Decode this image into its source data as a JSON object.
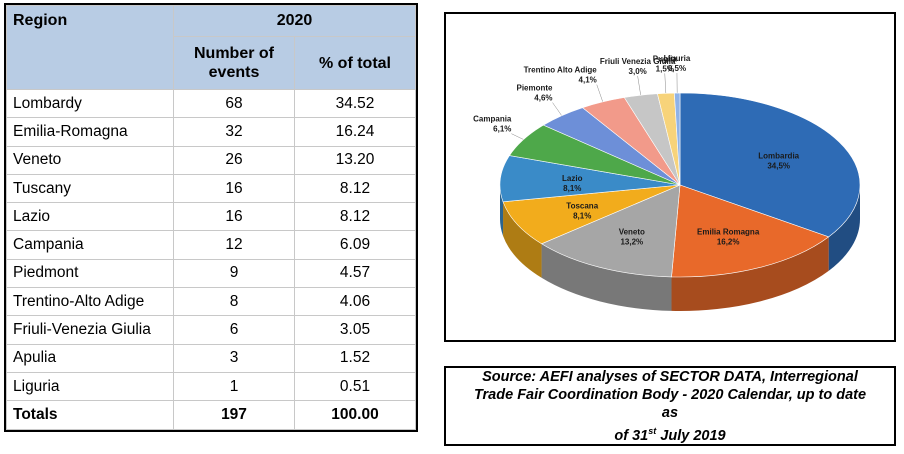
{
  "table": {
    "year": "2020",
    "region_header": "Region",
    "events_header_line1": "Number of",
    "events_header_line2": "events",
    "pct_header": "% of total",
    "rows": [
      {
        "region": "Lombardy",
        "events": "68",
        "pct": "34.52"
      },
      {
        "region": "Emilia-Romagna",
        "events": "32",
        "pct": "16.24"
      },
      {
        "region": "Veneto",
        "events": "26",
        "pct": "13.20"
      },
      {
        "region": "Tuscany",
        "events": "16",
        "pct": "8.12"
      },
      {
        "region": "Lazio",
        "events": "16",
        "pct": "8.12"
      },
      {
        "region": "Campania",
        "events": "12",
        "pct": "6.09"
      },
      {
        "region": "Piedmont",
        "events": "9",
        "pct": "4.57"
      },
      {
        "region": "Trentino-Alto Adige",
        "events": "8",
        "pct": "4.06"
      },
      {
        "region": "Friuli-Venezia Giulia",
        "events": "6",
        "pct": "3.05"
      },
      {
        "region": "Apulia",
        "events": "3",
        "pct": "1.52"
      },
      {
        "region": "Liguria",
        "events": "1",
        "pct": "0.51"
      }
    ],
    "totals": {
      "label": "Totals",
      "events": "197",
      "pct": "100.00"
    }
  },
  "chart_data": {
    "type": "pie",
    "style": "3d",
    "slices": [
      {
        "name": "Lombardia",
        "value": 34.5,
        "label": "34,5%",
        "color": "#2e6bb5"
      },
      {
        "name": "Emilia Romagna",
        "value": 16.2,
        "label": "16,2%",
        "color": "#e8692a"
      },
      {
        "name": "Veneto",
        "value": 13.2,
        "label": "13,2%",
        "color": "#a6a6a6"
      },
      {
        "name": "Toscana",
        "value": 8.1,
        "label": "8,1%",
        "color": "#f2ac1c"
      },
      {
        "name": "Lazio",
        "value": 8.1,
        "label": "8,1%",
        "color": "#3a8bc8"
      },
      {
        "name": "Campania",
        "value": 6.1,
        "label": "6,1%",
        "color": "#4ea84a"
      },
      {
        "name": "Piemonte",
        "value": 4.6,
        "label": "4,6%",
        "color": "#6d8fd8"
      },
      {
        "name": "Trentino Alto Adige",
        "value": 4.1,
        "label": "4,1%",
        "color": "#f29a8a"
      },
      {
        "name": "Friuli Venezia Giulia",
        "value": 3.0,
        "label": "3,0%",
        "color": "#c6c6c6"
      },
      {
        "name": "Puglia",
        "value": 1.5,
        "label": "1,5%",
        "color": "#f7d37a"
      },
      {
        "name": "Liguria",
        "value": 0.5,
        "label": "0,5%",
        "color": "#8fb3e8"
      }
    ]
  },
  "source": {
    "line1": "Source: AEFI analyses of SECTOR DATA, Interregional",
    "line2": "Trade Fair Coordination Body - 2020 Calendar, up to date as",
    "line3_prefix": "of 31",
    "line3_sup": "st",
    "line3_suffix": " July 2019"
  }
}
